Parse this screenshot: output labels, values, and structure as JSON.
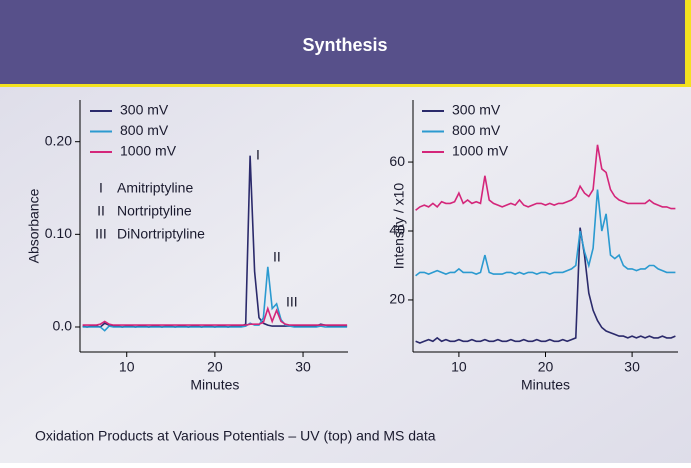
{
  "header": {
    "title": "Synthesis"
  },
  "caption": "Oxidation Products at Various Potentials – UV (top) and MS data",
  "chart_data": [
    {
      "type": "line",
      "ylabel": "Absorbance",
      "xlabel": "Minutes",
      "xlim": [
        4.7,
        35.1
      ],
      "ylim": [
        -0.027,
        0.245
      ],
      "xticks": [
        10,
        20,
        30
      ],
      "yticks": [
        {
          "value": 0,
          "label": "0.0"
        },
        {
          "value": 0.1,
          "label": "0.10"
        },
        {
          "value": 0.2,
          "label": "0.20"
        }
      ],
      "peak_labels": [
        "I",
        "II",
        "III"
      ],
      "compounds": [
        {
          "marker": "I",
          "name": "Amitriptyline"
        },
        {
          "marker": "II",
          "name": "Nortriptyline"
        },
        {
          "marker": "III",
          "name": "DiNortriptyline"
        }
      ],
      "x": [
        5,
        5.5,
        6,
        6.5,
        7,
        7.5,
        8,
        8.5,
        9,
        9.5,
        10,
        10.5,
        11,
        11.5,
        12,
        12.5,
        13,
        13.5,
        14,
        14.5,
        15,
        15.5,
        16,
        16.5,
        17,
        17.5,
        18,
        18.5,
        19,
        19.5,
        20,
        20.5,
        21,
        21.5,
        22,
        22.5,
        23,
        23.5,
        24,
        24.5,
        25,
        25.5,
        26,
        26.5,
        27,
        27.5,
        28,
        28.5,
        29,
        29.5,
        30,
        30.5,
        31,
        31.5,
        32,
        32.5,
        33,
        33.5,
        34,
        34.5,
        35
      ],
      "series": [
        {
          "name": "300 mV",
          "color": "#2b2a6b",
          "values": [
            0.001,
            0,
            0.001,
            0.001,
            0,
            0.004,
            0.002,
            0.001,
            0.001,
            0,
            0.001,
            0.001,
            0,
            0.001,
            0.001,
            0,
            0.001,
            0.001,
            0,
            0.001,
            0.001,
            0,
            0.001,
            0.001,
            0,
            0.001,
            0.001,
            0,
            0.001,
            0.001,
            0,
            0.001,
            0.001,
            0,
            0.001,
            0.001,
            0.001,
            0.003,
            0.185,
            0.06,
            0.01,
            0.004,
            0.002,
            0.001,
            0.001,
            0.001,
            0.001,
            0.001,
            0.001,
            0.001,
            0.001,
            0.001,
            0.001,
            0.001,
            0.003,
            0.002,
            0.001,
            0.001,
            0.001,
            0.001,
            0.001
          ]
        },
        {
          "name": "800 mV",
          "color": "#2b9ad0",
          "values": [
            0,
            0,
            0,
            0,
            0,
            -0.004,
            0.001,
            0,
            0,
            0,
            0,
            0,
            0,
            0,
            0,
            0,
            0,
            0,
            0,
            0,
            0,
            0,
            0,
            0,
            0,
            0,
            0,
            0,
            0,
            0,
            0,
            0,
            0,
            0,
            0,
            0,
            0,
            0.001,
            0.004,
            0.002,
            0.002,
            0.01,
            0.065,
            0.02,
            0.025,
            0.008,
            0.002,
            0.001,
            0,
            0,
            0,
            0,
            0,
            0,
            0.001,
            0,
            0,
            0,
            0,
            0,
            0
          ]
        },
        {
          "name": "1000 mV",
          "color": "#d4267a",
          "values": [
            0.002,
            0.002,
            0.002,
            0.002,
            0.003,
            0.006,
            0.003,
            0.002,
            0.002,
            0.002,
            0.002,
            0.002,
            0.002,
            0.002,
            0.002,
            0.002,
            0.002,
            0.002,
            0.002,
            0.002,
            0.002,
            0.002,
            0.002,
            0.002,
            0.002,
            0.002,
            0.002,
            0.002,
            0.002,
            0.002,
            0.002,
            0.002,
            0.002,
            0.002,
            0.002,
            0.002,
            0.002,
            0.002,
            0.003,
            0.003,
            0.003,
            0.005,
            0.02,
            0.006,
            0.018,
            0.006,
            0.003,
            0.002,
            0.002,
            0.002,
            0.002,
            0.002,
            0.002,
            0.002,
            0.002,
            0.002,
            0.002,
            0.002,
            0.002,
            0.002,
            0.002
          ]
        }
      ]
    },
    {
      "type": "line",
      "ylabel": "Intensity / x10",
      "xlabel": "Minutes",
      "xlim": [
        4.7,
        35.3
      ],
      "ylim": [
        4.9,
        78
      ],
      "xticks": [
        10,
        20,
        30
      ],
      "yticks": [
        20,
        40,
        60
      ],
      "x": [
        5,
        5.5,
        6,
        6.5,
        7,
        7.5,
        8,
        8.5,
        9,
        9.5,
        10,
        10.5,
        11,
        11.5,
        12,
        12.5,
        13,
        13.5,
        14,
        14.5,
        15,
        15.5,
        16,
        16.5,
        17,
        17.5,
        18,
        18.5,
        19,
        19.5,
        20,
        20.5,
        21,
        21.5,
        22,
        22.5,
        23,
        23.5,
        24,
        24.5,
        25,
        25.5,
        26,
        26.5,
        27,
        27.5,
        28,
        28.5,
        29,
        29.5,
        30,
        30.5,
        31,
        31.5,
        32,
        32.5,
        33,
        33.5,
        34,
        34.5,
        35
      ],
      "series": [
        {
          "name": "300 mV",
          "color": "#2b2a6b",
          "values": [
            8,
            7.5,
            8,
            8.5,
            8,
            9,
            8,
            8.5,
            8,
            8,
            8.5,
            8,
            8,
            8.5,
            8,
            8,
            8.5,
            8,
            8,
            8.5,
            8,
            8,
            8.5,
            8,
            8,
            8.5,
            8,
            8,
            8.5,
            8,
            8,
            8.5,
            8,
            8,
            8.5,
            8,
            8.5,
            9,
            41,
            33,
            22,
            17,
            14,
            12,
            11,
            10.5,
            10,
            9.5,
            9.5,
            9,
            9.5,
            9,
            9.5,
            9,
            9.5,
            9,
            9,
            9.5,
            9,
            9,
            9.5
          ]
        },
        {
          "name": "800 mV",
          "color": "#2b9ad0",
          "values": [
            27,
            28,
            28,
            27.5,
            28,
            28.5,
            28,
            27.5,
            28,
            28,
            29,
            28,
            28,
            28,
            27.5,
            28,
            33,
            28,
            27.5,
            27.5,
            27.5,
            28,
            28,
            27.5,
            28,
            27.5,
            28,
            28,
            27.5,
            28,
            28,
            27.5,
            28,
            28,
            28,
            28.5,
            29,
            30,
            40,
            34,
            30,
            35,
            52,
            40,
            45,
            33,
            32,
            33,
            30,
            29,
            29,
            28.5,
            29,
            29,
            30,
            30,
            29,
            28.5,
            28,
            28,
            28
          ]
        },
        {
          "name": "1000 mV",
          "color": "#d4267a",
          "values": [
            46,
            47,
            47.5,
            47,
            48,
            47,
            48.5,
            48,
            48,
            48.5,
            51,
            48,
            49,
            48,
            48.5,
            48,
            56,
            49,
            48,
            47.5,
            47,
            47.5,
            48,
            47.5,
            49,
            47.5,
            47,
            47.5,
            48,
            48,
            47.5,
            48,
            47.5,
            48,
            48,
            48.5,
            49,
            50,
            53,
            51,
            50,
            52,
            65,
            58,
            57,
            52,
            50,
            49,
            48.5,
            48,
            48,
            48,
            48,
            48,
            49,
            48,
            47.5,
            47,
            47,
            46.5,
            46.5
          ]
        }
      ]
    }
  ]
}
